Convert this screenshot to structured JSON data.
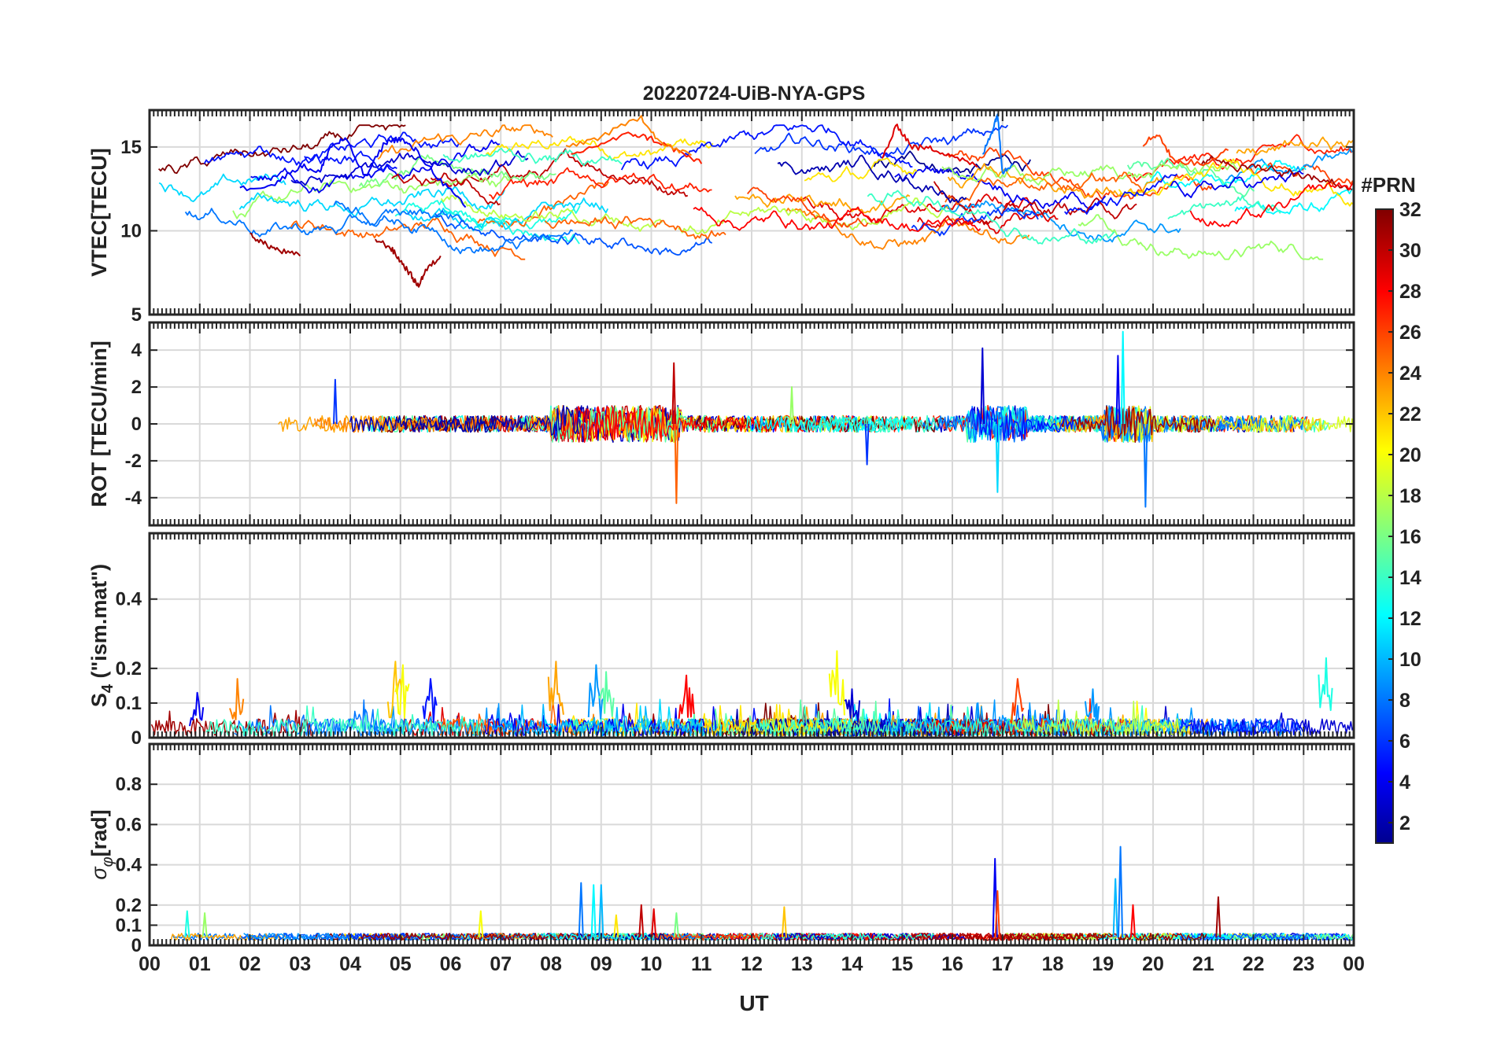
{
  "chart_data": {
    "type": "line",
    "title": "20220724-UiB-NYA-GPS",
    "xlabel": "UT",
    "x_tick_labels": [
      "00",
      "01",
      "02",
      "03",
      "04",
      "05",
      "06",
      "07",
      "08",
      "09",
      "10",
      "11",
      "12",
      "13",
      "14",
      "15",
      "16",
      "17",
      "18",
      "19",
      "20",
      "21",
      "22",
      "23",
      "00"
    ],
    "xlim": [
      0,
      24
    ],
    "grid": true,
    "colorbar": {
      "label": "#PRN",
      "range": [
        1,
        32
      ],
      "ticks": [
        2,
        4,
        6,
        8,
        10,
        12,
        14,
        16,
        18,
        20,
        22,
        24,
        26,
        28,
        30,
        32
      ],
      "tick_labels": [
        "2",
        "4",
        "6",
        "8",
        "10",
        "12",
        "14",
        "16",
        "18",
        "20",
        "22",
        "24",
        "26",
        "28",
        "30",
        "32"
      ],
      "colormap": "jet",
      "placement": "right"
    },
    "panels": [
      {
        "id": "vtec",
        "ylabel": "VTEC[TECU]",
        "ylim": [
          5,
          17.2
        ],
        "yticks": [
          5,
          10,
          15
        ],
        "ytick_labels": [
          "5",
          "10",
          "15"
        ],
        "description": "Vertical TEC per satellite",
        "series_summary": "arcs per PRN, ~9-16.5 TECU, minimum ~6.7 near 05:20 UT (PRN ~31)",
        "sample_series": [
          {
            "prn": 31,
            "x": [
              2.0,
              2.3,
              2.6,
              3.0
            ],
            "y": [
              9.8,
              9.2,
              8.8,
              8.5
            ]
          },
          {
            "prn": 31,
            "x": [
              4.5,
              4.8,
              5.0,
              5.2,
              5.35,
              5.5,
              5.8
            ],
            "y": [
              9.5,
              9.0,
              8.2,
              7.4,
              6.7,
              7.6,
              8.5
            ]
          },
          {
            "prn": 4,
            "x": [
              1.8,
              2.5,
              3.0,
              3.4,
              3.6,
              3.9,
              4.3,
              4.7,
              5.0,
              5.3,
              5.8,
              6.3
            ],
            "y": [
              12.5,
              12.8,
              13.9,
              13.5,
              15.0,
              15.5,
              13.2,
              15.3,
              15.5,
              14.8,
              13.0,
              11.4
            ]
          },
          {
            "prn": 27,
            "x": [
              8.4,
              9.0,
              9.6,
              10.0,
              10.5,
              11.0
            ],
            "y": [
              14.5,
              15.2,
              15.8,
              15.5,
              14.8,
              14.0
            ]
          },
          {
            "prn": 24,
            "x": [
              8.3,
              9.0,
              9.8,
              10.2,
              10.8
            ],
            "y": [
              15.0,
              15.6,
              16.8,
              15.2,
              14.5
            ]
          },
          {
            "prn": 29,
            "x": [
              14.6,
              14.9,
              15.2,
              15.6,
              16.0,
              16.5
            ],
            "y": [
              14.3,
              16.3,
              15.0,
              14.9,
              14.5,
              13.8
            ]
          },
          {
            "prn": 8,
            "x": [
              16.6,
              16.8,
              16.9,
              17.0,
              17.2
            ],
            "y": [
              14.5,
              16.0,
              17.0,
              13.5,
              14.0
            ]
          },
          {
            "prn": 26,
            "x": [
              19.8,
              20.1,
              20.4,
              21.0,
              21.5
            ],
            "y": [
              15.2,
              15.8,
              14.2,
              14.0,
              14.8
            ]
          }
        ]
      },
      {
        "id": "rot",
        "ylabel": "ROT [TECU/min]",
        "ylim": [
          -5.5,
          5.5
        ],
        "yticks": [
          -4,
          -2,
          0,
          2,
          4
        ],
        "ytick_labels": [
          "-4",
          "-2",
          "0",
          "2",
          "4"
        ],
        "description": "Rate of TEC",
        "series_summary": "noisy around 0 (±1), spikes ~3.3 at 10.45 UT, ~4.1 at 16.6 UT, ~5 at 19.35 UT, ~-4.5 at 19.85 UT",
        "spikes": [
          {
            "x": 3.7,
            "y": 2.4,
            "prn": 6
          },
          {
            "x": 10.45,
            "y": 3.3,
            "prn": 30
          },
          {
            "x": 10.5,
            "y": -4.3,
            "prn": 25
          },
          {
            "x": 12.8,
            "y": 2.0,
            "prn": 17
          },
          {
            "x": 14.3,
            "y": -2.2,
            "prn": 6
          },
          {
            "x": 16.6,
            "y": 4.1,
            "prn": 3
          },
          {
            "x": 16.9,
            "y": -3.7,
            "prn": 11
          },
          {
            "x": 19.3,
            "y": 3.7,
            "prn": 4
          },
          {
            "x": 19.4,
            "y": 5.0,
            "prn": 12
          },
          {
            "x": 19.85,
            "y": -4.5,
            "prn": 8
          }
        ]
      },
      {
        "id": "s4",
        "ylabel": "S4 (\"ism.mat\")",
        "ylabel_main": "S",
        "ylabel_sub": "4",
        "ylabel_rest": " (\"ism.mat\")",
        "ylim": [
          0,
          0.59
        ],
        "yticks": [
          0,
          0.1,
          0.2,
          0.4
        ],
        "ytick_labels": [
          "0",
          "0.1",
          "0.2",
          "0.4"
        ],
        "description": "Amplitude scintillation index",
        "series_summary": "background 0-0.05, peaks ~0.22 near 05 UT, 08 UT, 08.9 UT; 0.25 near 13.75 UT; 0.23 near 23.5 UT",
        "spikes": [
          {
            "x": 0.95,
            "y": 0.13,
            "prn": 4
          },
          {
            "x": 1.75,
            "y": 0.17,
            "prn": 24
          },
          {
            "x": 4.9,
            "y": 0.22,
            "prn": 22
          },
          {
            "x": 5.05,
            "y": 0.21,
            "prn": 20
          },
          {
            "x": 5.6,
            "y": 0.17,
            "prn": 5
          },
          {
            "x": 8.1,
            "y": 0.22,
            "prn": 23
          },
          {
            "x": 8.9,
            "y": 0.21,
            "prn": 9
          },
          {
            "x": 9.1,
            "y": 0.19,
            "prn": 15
          },
          {
            "x": 10.7,
            "y": 0.18,
            "prn": 28
          },
          {
            "x": 13.7,
            "y": 0.25,
            "prn": 20
          },
          {
            "x": 14.0,
            "y": 0.14,
            "prn": 3
          },
          {
            "x": 17.3,
            "y": 0.17,
            "prn": 26
          },
          {
            "x": 18.8,
            "y": 0.14,
            "prn": 9
          },
          {
            "x": 23.45,
            "y": 0.23,
            "prn": 13
          }
        ]
      },
      {
        "id": "sigphi",
        "ylabel": "σφ[rad]",
        "ylabel_main": "σ",
        "ylabel_sub": "φ",
        "ylabel_rest": "[rad]",
        "ylim": [
          0,
          1.0
        ],
        "yticks": [
          0,
          0.1,
          0.2,
          0.4,
          0.6,
          0.8
        ],
        "ytick_labels": [
          "0",
          "0.1",
          "0.2",
          "0.4",
          "0.6",
          "0.8"
        ],
        "description": "Phase scintillation index",
        "series_summary": "background ~0.03-0.05, spikes 0.3 near 08.6-09.1 UT, 0.43 at 16.9 UT, 0.49 at 19.35 UT, 0.24 at 21.3 UT",
        "spikes": [
          {
            "x": 0.75,
            "y": 0.17,
            "prn": 13
          },
          {
            "x": 1.1,
            "y": 0.16,
            "prn": 17
          },
          {
            "x": 6.6,
            "y": 0.17,
            "prn": 20
          },
          {
            "x": 8.6,
            "y": 0.31,
            "prn": 8
          },
          {
            "x": 8.85,
            "y": 0.3,
            "prn": 12
          },
          {
            "x": 9.0,
            "y": 0.3,
            "prn": 10
          },
          {
            "x": 9.3,
            "y": 0.15,
            "prn": 21
          },
          {
            "x": 9.8,
            "y": 0.2,
            "prn": 30
          },
          {
            "x": 10.05,
            "y": 0.18,
            "prn": 29
          },
          {
            "x": 10.5,
            "y": 0.16,
            "prn": 16
          },
          {
            "x": 12.65,
            "y": 0.19,
            "prn": 22
          },
          {
            "x": 16.85,
            "y": 0.43,
            "prn": 4
          },
          {
            "x": 16.9,
            "y": 0.27,
            "prn": 26
          },
          {
            "x": 19.25,
            "y": 0.33,
            "prn": 10
          },
          {
            "x": 19.35,
            "y": 0.49,
            "prn": 8
          },
          {
            "x": 19.6,
            "y": 0.2,
            "prn": 28
          },
          {
            "x": 21.3,
            "y": 0.24,
            "prn": 31
          }
        ]
      }
    ]
  }
}
